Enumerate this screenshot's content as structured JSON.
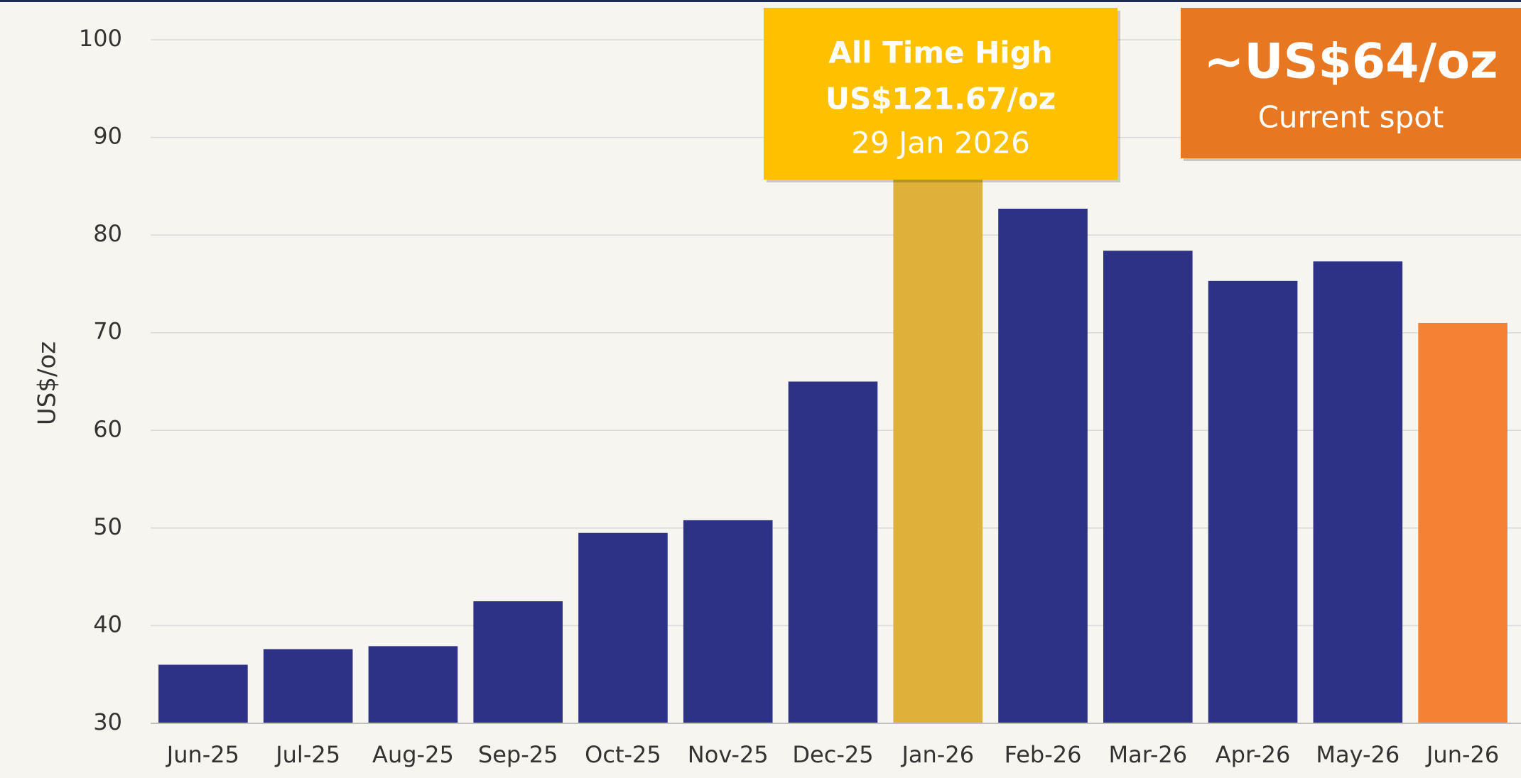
{
  "chart_data": {
    "type": "bar",
    "y_label": "US$/oz",
    "categories": [
      "Jun-25",
      "Jul-25",
      "Aug-25",
      "Sep-25",
      "Oct-25",
      "Nov-25",
      "Dec-25",
      "Jan-26",
      "Feb-26",
      "Mar-26",
      "Apr-26",
      "May-26",
      "Jun-26"
    ],
    "values": [
      36.0,
      37.6,
      37.9,
      42.5,
      49.5,
      50.8,
      65.0,
      101,
      82.7,
      78.4,
      75.3,
      77.3,
      71.0
    ],
    "colors": [
      "#2e3287",
      "#2e3287",
      "#2e3287",
      "#2e3287",
      "#2e3287",
      "#2e3287",
      "#2e3287",
      "#dfb13a",
      "#2e3287",
      "#2e3287",
      "#2e3287",
      "#2e3287",
      "#f58232"
    ],
    "ylim": [
      30,
      100
    ],
    "yticks": [
      30,
      40,
      50,
      60,
      70,
      80,
      90,
      100
    ],
    "grid": true,
    "annotations": [
      {
        "lines": [
          "All Time High",
          "US$121.67/oz",
          "29 Jan 2026"
        ],
        "color": "#ffc000"
      },
      {
        "lines": [
          "~US$64/oz",
          "Current spot"
        ],
        "color": "#e87722"
      }
    ]
  }
}
